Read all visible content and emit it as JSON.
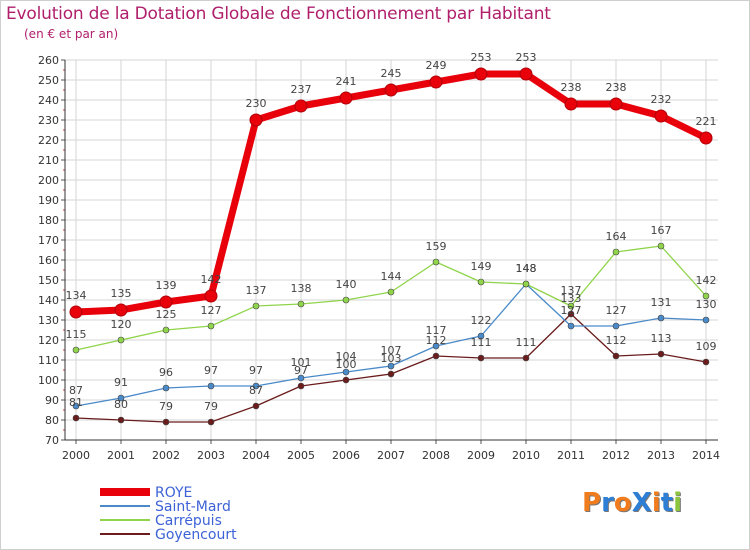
{
  "title": "Evolution de la Dotation Globale de Fonctionnement par Habitant",
  "subtitle": "(en € et par an)",
  "logo": "ProXiti",
  "chart_data": {
    "type": "line",
    "title": "Evolution de la Dotation Globale de Fonctionnement par Habitant",
    "subtitle": "(en € et par an)",
    "xlabel": "",
    "ylabel": "",
    "ylim": [
      70,
      260
    ],
    "ytick_step": 10,
    "x": [
      "2000",
      "2001",
      "2002",
      "2003",
      "2004",
      "2005",
      "2006",
      "2007",
      "2008",
      "2009",
      "2010",
      "2011",
      "2012",
      "2013",
      "2014"
    ],
    "legend_position": "bottom-left",
    "series": [
      {
        "name": "ROYE",
        "color": "#e8000b",
        "values": [
          134,
          135,
          139,
          142,
          230,
          237,
          241,
          245,
          249,
          253,
          253,
          238,
          238,
          232,
          221
        ]
      },
      {
        "name": "Saint-Mard",
        "color": "#4a8ac9",
        "values": [
          87,
          91,
          96,
          97,
          97,
          101,
          104,
          107,
          117,
          122,
          148,
          127,
          127,
          131,
          130
        ]
      },
      {
        "name": "Carrépuis",
        "color": "#8fd44a",
        "values": [
          115,
          120,
          125,
          127,
          137,
          138,
          140,
          144,
          159,
          149,
          148,
          137,
          164,
          167,
          142
        ]
      },
      {
        "name": "Goyencourt",
        "color": "#6b1c1c",
        "values": [
          81,
          80,
          79,
          79,
          87,
          97,
          100,
          103,
          112,
          111,
          111,
          133,
          112,
          113,
          109
        ]
      }
    ]
  }
}
